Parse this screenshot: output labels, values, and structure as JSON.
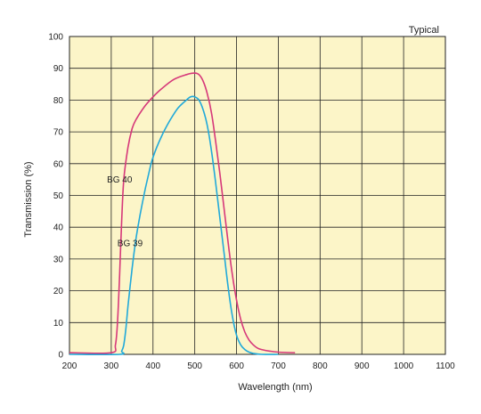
{
  "chart_data": {
    "type": "line",
    "annotation": "Typical",
    "xlabel": "Wavelength (nm)",
    "ylabel": "Transmission (%)",
    "xlim": [
      200,
      1100
    ],
    "ylim": [
      0,
      100
    ],
    "xticks": [
      200,
      300,
      400,
      500,
      600,
      700,
      800,
      900,
      1000,
      1100
    ],
    "yticks": [
      0,
      10,
      20,
      30,
      40,
      50,
      60,
      70,
      80,
      90,
      100
    ],
    "grid": true,
    "colors": {
      "plot_background": "#fcf5c8",
      "grid": "#222222",
      "BG 40": "#d6387a",
      "BG 39": "#21a9d9"
    },
    "series": [
      {
        "name": "BG 40",
        "x": [
          200,
          300,
          310,
          315,
          320,
          325,
          330,
          340,
          350,
          360,
          380,
          400,
          420,
          450,
          480,
          500,
          510,
          520,
          530,
          540,
          550,
          560,
          570,
          580,
          590,
          600,
          610,
          620,
          630,
          640,
          650,
          660,
          680,
          700,
          740
        ],
        "y": [
          0.5,
          0.5,
          3,
          10,
          25,
          42,
          55,
          65,
          71,
          74,
          78,
          81,
          83.5,
          86.5,
          88,
          88.5,
          88,
          86,
          82,
          76,
          67,
          57,
          46,
          35,
          25,
          17,
          11,
          7,
          4.5,
          3,
          2,
          1.5,
          1,
          0.7,
          0.5
        ]
      },
      {
        "name": "BG 39",
        "x": [
          200,
          320,
          325,
          330,
          335,
          340,
          350,
          360,
          375,
          390,
          400,
          420,
          440,
          460,
          480,
          490,
          500,
          510,
          520,
          530,
          540,
          550,
          560,
          570,
          580,
          590,
          600,
          610,
          620,
          630,
          640,
          660,
          700
        ],
        "y": [
          0,
          0,
          1,
          3,
          8,
          15,
          27,
          37,
          48,
          57,
          62,
          68.5,
          73.5,
          77.5,
          80,
          81,
          81,
          80,
          77,
          72,
          64,
          54,
          43,
          32,
          21,
          12,
          6,
          3,
          1.5,
          0.7,
          0.3,
          0,
          0
        ]
      }
    ],
    "labels": [
      {
        "text": "BG 40",
        "x": 320,
        "y": 55
      },
      {
        "text": "BG 39",
        "x": 345,
        "y": 35
      }
    ]
  }
}
